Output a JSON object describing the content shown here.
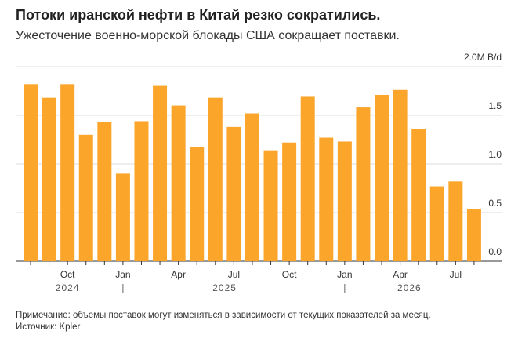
{
  "chart_data": {
    "type": "bar",
    "title": "Потоки иранской нефти в Китай резко сократились.",
    "subtitle": "Ужесточение военно-морской блокады США сокращает поставки.",
    "categories": [
      null,
      null,
      "Oct",
      null,
      null,
      "Jan",
      null,
      null,
      "Apr",
      null,
      null,
      "Jul",
      null,
      null,
      "Oct",
      null,
      null,
      "Jan",
      null,
      null,
      "Apr",
      null,
      null,
      "Jul",
      null
    ],
    "year_labels": [
      "2024",
      "2025",
      "2026"
    ],
    "values": [
      1.82,
      1.68,
      1.82,
      1.3,
      1.43,
      0.9,
      1.44,
      1.81,
      1.6,
      1.17,
      1.68,
      1.38,
      1.52,
      1.14,
      1.22,
      1.69,
      1.27,
      1.23,
      1.58,
      1.71,
      1.76,
      1.36,
      0.77,
      0.82,
      0.54
    ],
    "color": "#fba52b",
    "ylim": [
      0,
      2
    ],
    "yticks": [
      {
        "value": 0,
        "label": "0.0"
      },
      0.5,
      {
        "value": 1,
        "label": "1.0"
      },
      1.5,
      {
        "value": 2,
        "label": "2.0M B/d"
      }
    ],
    "grid": true,
    "note": "Примечание: объемы поставок могут изменяться в зависимости от текущих показателей за месяц.",
    "source": "Источник: Kpler"
  }
}
